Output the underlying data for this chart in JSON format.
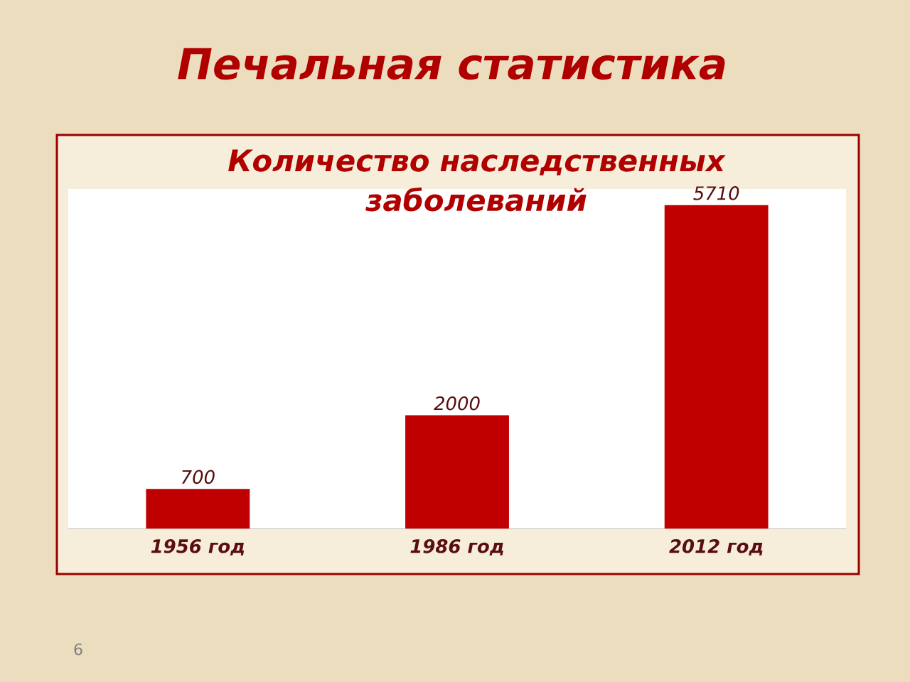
{
  "chart_data": {
    "type": "bar",
    "title": "Печальная статистика",
    "subtitle": "Количество наследственных заболеваний",
    "categories": [
      "1956 год",
      "1986 год",
      "2012 год"
    ],
    "values": [
      700,
      2000,
      5710
    ],
    "color": "#c00000",
    "data_labels": true,
    "annotations": [
      "6"
    ]
  }
}
